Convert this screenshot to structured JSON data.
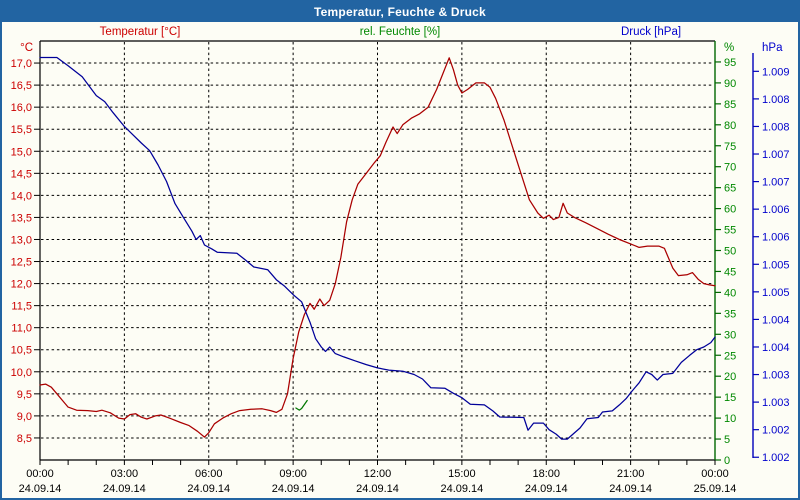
{
  "window": {
    "title": "Temperatur, Feuchte & Druck"
  },
  "legend": {
    "temperature": "Temperatur [°C]",
    "humidity": "rel. Feuchte [%]",
    "pressure": "Druck [hPa]"
  },
  "axes": {
    "temperature": {
      "unit": "°C",
      "color": "#CC0000",
      "tick_labels": [
        "17,0",
        "16,5",
        "16,0",
        "15,5",
        "15,0",
        "14,5",
        "14,0",
        "13,5",
        "13,0",
        "12,5",
        "12,0",
        "11,5",
        "11,0",
        "10,5",
        "10,0",
        "9,5",
        "9,0",
        "8,5"
      ],
      "tick_values": [
        17.0,
        16.5,
        16.0,
        15.5,
        15.0,
        14.5,
        14.0,
        13.5,
        13.0,
        12.5,
        12.0,
        11.5,
        11.0,
        10.5,
        10.0,
        9.5,
        9.0,
        8.5
      ]
    },
    "humidity": {
      "unit": "%",
      "color": "#008800",
      "tick_labels": [
        "95",
        "90",
        "85",
        "80",
        "75",
        "70",
        "65",
        "60",
        "55",
        "50",
        "45",
        "40",
        "35",
        "30",
        "25",
        "20",
        "15",
        "10",
        "5",
        "0"
      ],
      "tick_values": [
        95,
        90,
        85,
        80,
        75,
        70,
        65,
        60,
        55,
        50,
        45,
        40,
        35,
        30,
        25,
        20,
        15,
        10,
        5,
        0
      ]
    },
    "pressure": {
      "unit": "hPa",
      "color": "#0000CC",
      "tick_labels": [
        "1.009",
        "1.008",
        "1.008",
        "1.007",
        "1.007",
        "1.006",
        "1.006",
        "1.005",
        "1.005",
        "1.004",
        "1.004",
        "1.003",
        "1.003",
        "1.002",
        "1.002"
      ],
      "tick_values": [
        1009,
        1008.5,
        1008,
        1007.5,
        1007,
        1006.5,
        1006,
        1005.5,
        1005,
        1004.5,
        1004,
        1003.5,
        1003,
        1002.5,
        1002
      ]
    },
    "time": {
      "ticks": [
        {
          "time": "00:00",
          "date": "24.09.14"
        },
        {
          "time": "03:00",
          "date": "24.09.14"
        },
        {
          "time": "06:00",
          "date": "24.09.14"
        },
        {
          "time": "09:00",
          "date": "24.09.14"
        },
        {
          "time": "12:00",
          "date": "24.09.14"
        },
        {
          "time": "15:00",
          "date": "24.09.14"
        },
        {
          "time": "18:00",
          "date": "24.09.14"
        },
        {
          "time": "21:00",
          "date": "24.09.14"
        },
        {
          "time": "00:00",
          "date": "25.09.14"
        }
      ]
    }
  },
  "colors": {
    "titlebar": "#2264A2",
    "window_bg": "#FDFDF5",
    "frame": "#000000",
    "grid": "#000000",
    "temp_curve": "#AA0000",
    "hum_curve": "#007700",
    "pres_curve": "#000099",
    "pres_axis_line": "#0000BB",
    "hum_axis_line": "#006600"
  },
  "chart_data": {
    "type": "line",
    "title": "Temperatur, Feuchte & Druck",
    "grid": true,
    "legend_position": "top",
    "x_axis": {
      "start": "24.09.14 00:00",
      "end": "25.09.14 00:00",
      "hours_span": 24,
      "gridline_every_hours": 3,
      "minor_tick_every_hours": 1
    },
    "series": [
      {
        "name": "Temperatur",
        "unit": "°C",
        "color": "#AA0000",
        "axis_range": [
          8.0,
          17.5
        ],
        "labeled_range": [
          8.5,
          17.0
        ],
        "points": [
          [
            0,
            9.7
          ],
          [
            0.2,
            9.72
          ],
          [
            0.4,
            9.65
          ],
          [
            0.6,
            9.5
          ],
          [
            0.8,
            9.35
          ],
          [
            1.0,
            9.2
          ],
          [
            1.3,
            9.13
          ],
          [
            1.7,
            9.12
          ],
          [
            2.0,
            9.1
          ],
          [
            2.2,
            9.13
          ],
          [
            2.5,
            9.07
          ],
          [
            2.8,
            8.95
          ],
          [
            3.0,
            8.93
          ],
          [
            3.2,
            9.03
          ],
          [
            3.4,
            9.05
          ],
          [
            3.6,
            8.97
          ],
          [
            3.8,
            8.93
          ],
          [
            4.1,
            9.0
          ],
          [
            4.3,
            9.02
          ],
          [
            4.6,
            8.95
          ],
          [
            5.0,
            8.85
          ],
          [
            5.3,
            8.78
          ],
          [
            5.6,
            8.65
          ],
          [
            5.85,
            8.52
          ],
          [
            6.0,
            8.62
          ],
          [
            6.2,
            8.82
          ],
          [
            6.5,
            8.95
          ],
          [
            6.8,
            9.05
          ],
          [
            7.1,
            9.12
          ],
          [
            7.5,
            9.15
          ],
          [
            7.9,
            9.16
          ],
          [
            8.2,
            9.12
          ],
          [
            8.4,
            9.08
          ],
          [
            8.6,
            9.15
          ],
          [
            8.8,
            9.5
          ],
          [
            9.0,
            10.3
          ],
          [
            9.2,
            10.9
          ],
          [
            9.4,
            11.3
          ],
          [
            9.6,
            11.55
          ],
          [
            9.75,
            11.42
          ],
          [
            9.95,
            11.65
          ],
          [
            10.1,
            11.5
          ],
          [
            10.3,
            11.62
          ],
          [
            10.5,
            12.0
          ],
          [
            10.7,
            12.6
          ],
          [
            10.9,
            13.4
          ],
          [
            11.1,
            13.9
          ],
          [
            11.3,
            14.25
          ],
          [
            11.6,
            14.5
          ],
          [
            11.9,
            14.75
          ],
          [
            12.1,
            14.9
          ],
          [
            12.3,
            15.2
          ],
          [
            12.55,
            15.55
          ],
          [
            12.7,
            15.4
          ],
          [
            12.9,
            15.6
          ],
          [
            13.2,
            15.75
          ],
          [
            13.5,
            15.85
          ],
          [
            13.8,
            16.0
          ],
          [
            14.1,
            16.4
          ],
          [
            14.35,
            16.8
          ],
          [
            14.55,
            17.12
          ],
          [
            14.7,
            16.85
          ],
          [
            14.85,
            16.5
          ],
          [
            15.0,
            16.32
          ],
          [
            15.2,
            16.4
          ],
          [
            15.5,
            16.55
          ],
          [
            15.8,
            16.55
          ],
          [
            16.0,
            16.45
          ],
          [
            16.2,
            16.2
          ],
          [
            16.5,
            15.7
          ],
          [
            16.8,
            15.1
          ],
          [
            17.1,
            14.5
          ],
          [
            17.4,
            13.9
          ],
          [
            17.7,
            13.6
          ],
          [
            17.9,
            13.48
          ],
          [
            18.1,
            13.55
          ],
          [
            18.25,
            13.45
          ],
          [
            18.45,
            13.5
          ],
          [
            18.6,
            13.82
          ],
          [
            18.75,
            13.6
          ],
          [
            19.0,
            13.5
          ],
          [
            19.4,
            13.38
          ],
          [
            19.8,
            13.25
          ],
          [
            20.2,
            13.12
          ],
          [
            20.6,
            13.0
          ],
          [
            21.0,
            12.9
          ],
          [
            21.3,
            12.82
          ],
          [
            21.6,
            12.85
          ],
          [
            22.0,
            12.85
          ],
          [
            22.2,
            12.8
          ],
          [
            22.5,
            12.35
          ],
          [
            22.7,
            12.18
          ],
          [
            23.0,
            12.2
          ],
          [
            23.2,
            12.25
          ],
          [
            23.4,
            12.1
          ],
          [
            23.6,
            12.0
          ],
          [
            23.8,
            11.97
          ],
          [
            24,
            11.95
          ]
        ]
      },
      {
        "name": "rel. Feuchte",
        "unit": "%",
        "color": "#007700",
        "axis_range": [
          0,
          100
        ],
        "labeled_range": [
          0,
          95
        ],
        "points": [
          [
            9.1,
            12.4
          ],
          [
            9.22,
            11.9
          ],
          [
            9.3,
            12.3
          ],
          [
            9.5,
            14.2
          ]
        ]
      },
      {
        "name": "Druck",
        "unit": "hPa",
        "color": "#000099",
        "axis_range": [
          1001.95,
          1009.55
        ],
        "labeled_range": [
          1002,
          1009
        ],
        "points": [
          [
            0,
            1009.25
          ],
          [
            0.6,
            1009.25
          ],
          [
            1.0,
            1009.1
          ],
          [
            1.5,
            1008.9
          ],
          [
            2.0,
            1008.56
          ],
          [
            2.3,
            1008.45
          ],
          [
            2.6,
            1008.25
          ],
          [
            3.0,
            1008.0
          ],
          [
            3.3,
            1007.85
          ],
          [
            3.6,
            1007.7
          ],
          [
            3.9,
            1007.56
          ],
          [
            4.2,
            1007.3
          ],
          [
            4.5,
            1007.0
          ],
          [
            4.8,
            1006.6
          ],
          [
            5.1,
            1006.35
          ],
          [
            5.4,
            1006.1
          ],
          [
            5.55,
            1005.95
          ],
          [
            5.7,
            1006.02
          ],
          [
            5.85,
            1005.85
          ],
          [
            6.1,
            1005.78
          ],
          [
            6.3,
            1005.72
          ],
          [
            7.0,
            1005.7
          ],
          [
            7.3,
            1005.58
          ],
          [
            7.6,
            1005.45
          ],
          [
            8.1,
            1005.4
          ],
          [
            8.4,
            1005.22
          ],
          [
            8.7,
            1005.1
          ],
          [
            9.0,
            1004.95
          ],
          [
            9.3,
            1004.82
          ],
          [
            9.6,
            1004.45
          ],
          [
            9.8,
            1004.15
          ],
          [
            10.0,
            1004.0
          ],
          [
            10.15,
            1003.92
          ],
          [
            10.3,
            1004.0
          ],
          [
            10.5,
            1003.88
          ],
          [
            10.8,
            1003.82
          ],
          [
            11.2,
            1003.75
          ],
          [
            11.6,
            1003.68
          ],
          [
            12.0,
            1003.62
          ],
          [
            12.4,
            1003.58
          ],
          [
            12.9,
            1003.56
          ],
          [
            13.3,
            1003.5
          ],
          [
            13.6,
            1003.42
          ],
          [
            13.9,
            1003.26
          ],
          [
            14.4,
            1003.25
          ],
          [
            14.7,
            1003.16
          ],
          [
            15.0,
            1003.08
          ],
          [
            15.3,
            1002.96
          ],
          [
            15.8,
            1002.95
          ],
          [
            16.1,
            1002.84
          ],
          [
            16.35,
            1002.73
          ],
          [
            17.2,
            1002.72
          ],
          [
            17.35,
            1002.49
          ],
          [
            17.55,
            1002.62
          ],
          [
            17.9,
            1002.62
          ],
          [
            18.1,
            1002.5
          ],
          [
            18.35,
            1002.42
          ],
          [
            18.55,
            1002.33
          ],
          [
            18.75,
            1002.33
          ],
          [
            18.95,
            1002.42
          ],
          [
            19.2,
            1002.53
          ],
          [
            19.45,
            1002.7
          ],
          [
            19.85,
            1002.72
          ],
          [
            20.0,
            1002.82
          ],
          [
            20.35,
            1002.84
          ],
          [
            20.6,
            1002.95
          ],
          [
            20.85,
            1003.07
          ],
          [
            21.05,
            1003.2
          ],
          [
            21.3,
            1003.35
          ],
          [
            21.55,
            1003.55
          ],
          [
            21.75,
            1003.5
          ],
          [
            21.95,
            1003.4
          ],
          [
            22.15,
            1003.5
          ],
          [
            22.5,
            1003.52
          ],
          [
            22.8,
            1003.72
          ],
          [
            23.1,
            1003.85
          ],
          [
            23.35,
            1003.95
          ],
          [
            23.6,
            1004.0
          ],
          [
            23.85,
            1004.08
          ],
          [
            24,
            1004.18
          ]
        ]
      }
    ]
  }
}
